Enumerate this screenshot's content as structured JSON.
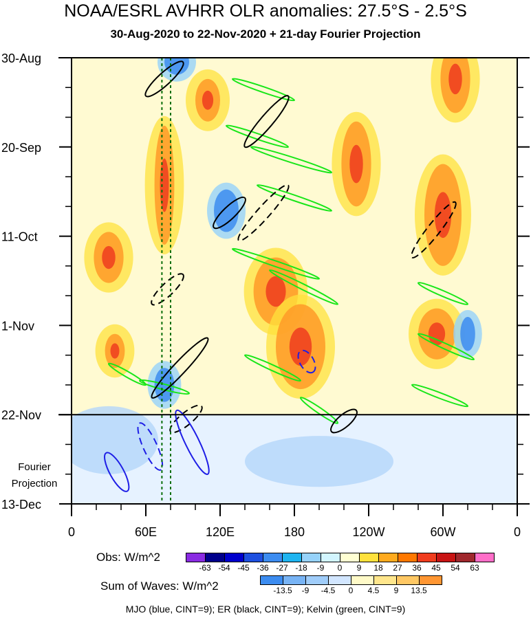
{
  "title": "NOAA/ESRL AVHRR OLR anomalies: 27.5°S - 2.5°S",
  "subtitle": "30-Aug-2020 to 22-Nov-2020 + 21-day Fourier Projection",
  "chart_data": {
    "type": "heatmap",
    "x_ticks": [
      "0",
      "60E",
      "120E",
      "180",
      "120W",
      "60W",
      "0"
    ],
    "x_tick_values": [
      0,
      60,
      120,
      180,
      240,
      300,
      360
    ],
    "xlim": [
      0,
      360
    ],
    "y_ticks": [
      "30-Aug",
      "20-Sep",
      "11-Oct",
      "1-Nov",
      "22-Nov",
      "13-Dec"
    ],
    "y_tick_values": [
      0,
      21,
      42,
      63,
      84,
      105
    ],
    "ylim": [
      0,
      105
    ],
    "observation_end_day": 84,
    "projection_label_lines": [
      "Fourier",
      "Projection"
    ],
    "dashed_reference_lon": [
      73,
      80
    ],
    "kelvin_features": [
      {
        "lon": [
          130,
          180
        ],
        "day": [
          5,
          10
        ]
      },
      {
        "lon": [
          125,
          175
        ],
        "day": [
          16,
          21
        ]
      },
      {
        "lon": [
          145,
          210
        ],
        "day": [
          21,
          27
        ]
      },
      {
        "lon": [
          150,
          210
        ],
        "day": [
          30,
          36
        ]
      },
      {
        "lon": [
          130,
          200
        ],
        "day": [
          45,
          52
        ]
      },
      {
        "lon": [
          160,
          215
        ],
        "day": [
          50,
          58
        ]
      },
      {
        "lon": [
          30,
          60
        ],
        "day": [
          72,
          77
        ]
      },
      {
        "lon": [
          140,
          185
        ],
        "day": [
          70,
          76
        ]
      },
      {
        "lon": [
          185,
          215
        ],
        "day": [
          80,
          86
        ]
      },
      {
        "lon": [
          280,
          320
        ],
        "day": [
          53,
          58
        ]
      },
      {
        "lon": [
          280,
          325
        ],
        "day": [
          65,
          71
        ]
      },
      {
        "lon": [
          275,
          320
        ],
        "day": [
          77,
          82
        ]
      },
      {
        "lon": [
          55,
          95
        ],
        "day": [
          76,
          79
        ]
      }
    ],
    "er_features": [
      {
        "lon": [
          60,
          90
        ],
        "day": [
          1,
          9
        ],
        "dash": false
      },
      {
        "lon": [
          140,
          175
        ],
        "day": [
          9,
          21
        ],
        "dash": false
      },
      {
        "lon": [
          115,
          140
        ],
        "day": [
          33,
          40
        ],
        "dash": false
      },
      {
        "lon": [
          135,
          175
        ],
        "day": [
          30,
          43
        ],
        "dash": true
      },
      {
        "lon": [
          65,
          90
        ],
        "day": [
          51,
          58
        ],
        "dash": true
      },
      {
        "lon": [
          65,
          110
        ],
        "day": [
          66,
          80
        ],
        "dash": false
      },
      {
        "lon": [
          275,
          310
        ],
        "day": [
          34,
          47
        ],
        "dash": true
      },
      {
        "lon": [
          80,
          105
        ],
        "day": [
          82,
          88
        ],
        "dash": true
      },
      {
        "lon": [
          210,
          230
        ],
        "day": [
          83,
          88
        ],
        "dash": false
      }
    ],
    "mjo_features": [
      {
        "lon": [
          85,
          110
        ],
        "day": [
          83,
          98
        ],
        "dash": false
      },
      {
        "lon": [
          28,
          45
        ],
        "day": [
          93,
          102
        ],
        "dash": false
      },
      {
        "lon": [
          55,
          72
        ],
        "day": [
          86,
          97
        ],
        "dash": true
      },
      {
        "lon": [
          185,
          195
        ],
        "day": [
          69,
          74
        ],
        "dash": true
      }
    ],
    "positive_anomaly_regions": [
      {
        "lon": 30,
        "day": 47,
        "r_lon": 12,
        "r_day": 6
      },
      {
        "lon": 110,
        "day": 10,
        "r_lon": 10,
        "r_day": 5
      },
      {
        "lon": 165,
        "day": 55,
        "r_lon": 18,
        "r_day": 8
      },
      {
        "lon": 185,
        "day": 68,
        "r_lon": 20,
        "r_day": 10
      },
      {
        "lon": 300,
        "day": 37,
        "r_lon": 15,
        "r_day": 12
      },
      {
        "lon": 310,
        "day": 5,
        "r_lon": 12,
        "r_day": 8
      },
      {
        "lon": 295,
        "day": 65,
        "r_lon": 15,
        "r_day": 6
      },
      {
        "lon": 35,
        "day": 69,
        "r_lon": 8,
        "r_day": 4
      },
      {
        "lon": 75,
        "day": 30,
        "r_lon": 8,
        "r_day": 14
      },
      {
        "lon": 230,
        "day": 25,
        "r_lon": 12,
        "r_day": 10
      }
    ],
    "negative_anomaly_regions": [
      {
        "lon": 125,
        "day": 36,
        "r_lon": 10,
        "r_day": 5
      },
      {
        "lon": 75,
        "day": 77,
        "r_lon": 8,
        "r_day": 4
      },
      {
        "lon": 85,
        "day": 1,
        "r_lon": 10,
        "r_day": 3
      },
      {
        "lon": 320,
        "day": 65,
        "r_lon": 6,
        "r_day": 4
      },
      {
        "lon": 30,
        "day": 90,
        "r_lon": 40,
        "r_day": 8
      },
      {
        "lon": 200,
        "day": 95,
        "r_lon": 60,
        "r_day": 6
      }
    ]
  },
  "legend_obs": {
    "label": "Obs: W/m^2",
    "ticks": [
      "-63",
      "-54",
      "-45",
      "-36",
      "-27",
      "-18",
      "-9",
      "0",
      "9",
      "18",
      "27",
      "36",
      "45",
      "54",
      "63"
    ],
    "colors": [
      "#8a2be2",
      "#00008b",
      "#0000cd",
      "#1e50e0",
      "#3c8cf0",
      "#1eb4f0",
      "#96d2fa",
      "#d2f5ff",
      "#ffffd2",
      "#ffe13c",
      "#ffaa1e",
      "#ff7800",
      "#f03c1e",
      "#c81414",
      "#a0282d",
      "#ff6ec8"
    ]
  },
  "legend_waves": {
    "label": "Sum of Waves: W/m^2",
    "ticks": [
      "-13.5",
      "-9",
      "-4.5",
      "0",
      "4.5",
      "9",
      "13.5"
    ],
    "colors": [
      "#3c8cf0",
      "#78b4f5",
      "#a0cdfa",
      "#d2e6ff",
      "#fffac8",
      "#ffe68c",
      "#ffc864",
      "#ff9632"
    ]
  },
  "footer": "MJO (blue, CINT=9); ER (black, CINT=9); Kelvin (green, CINT=9)"
}
